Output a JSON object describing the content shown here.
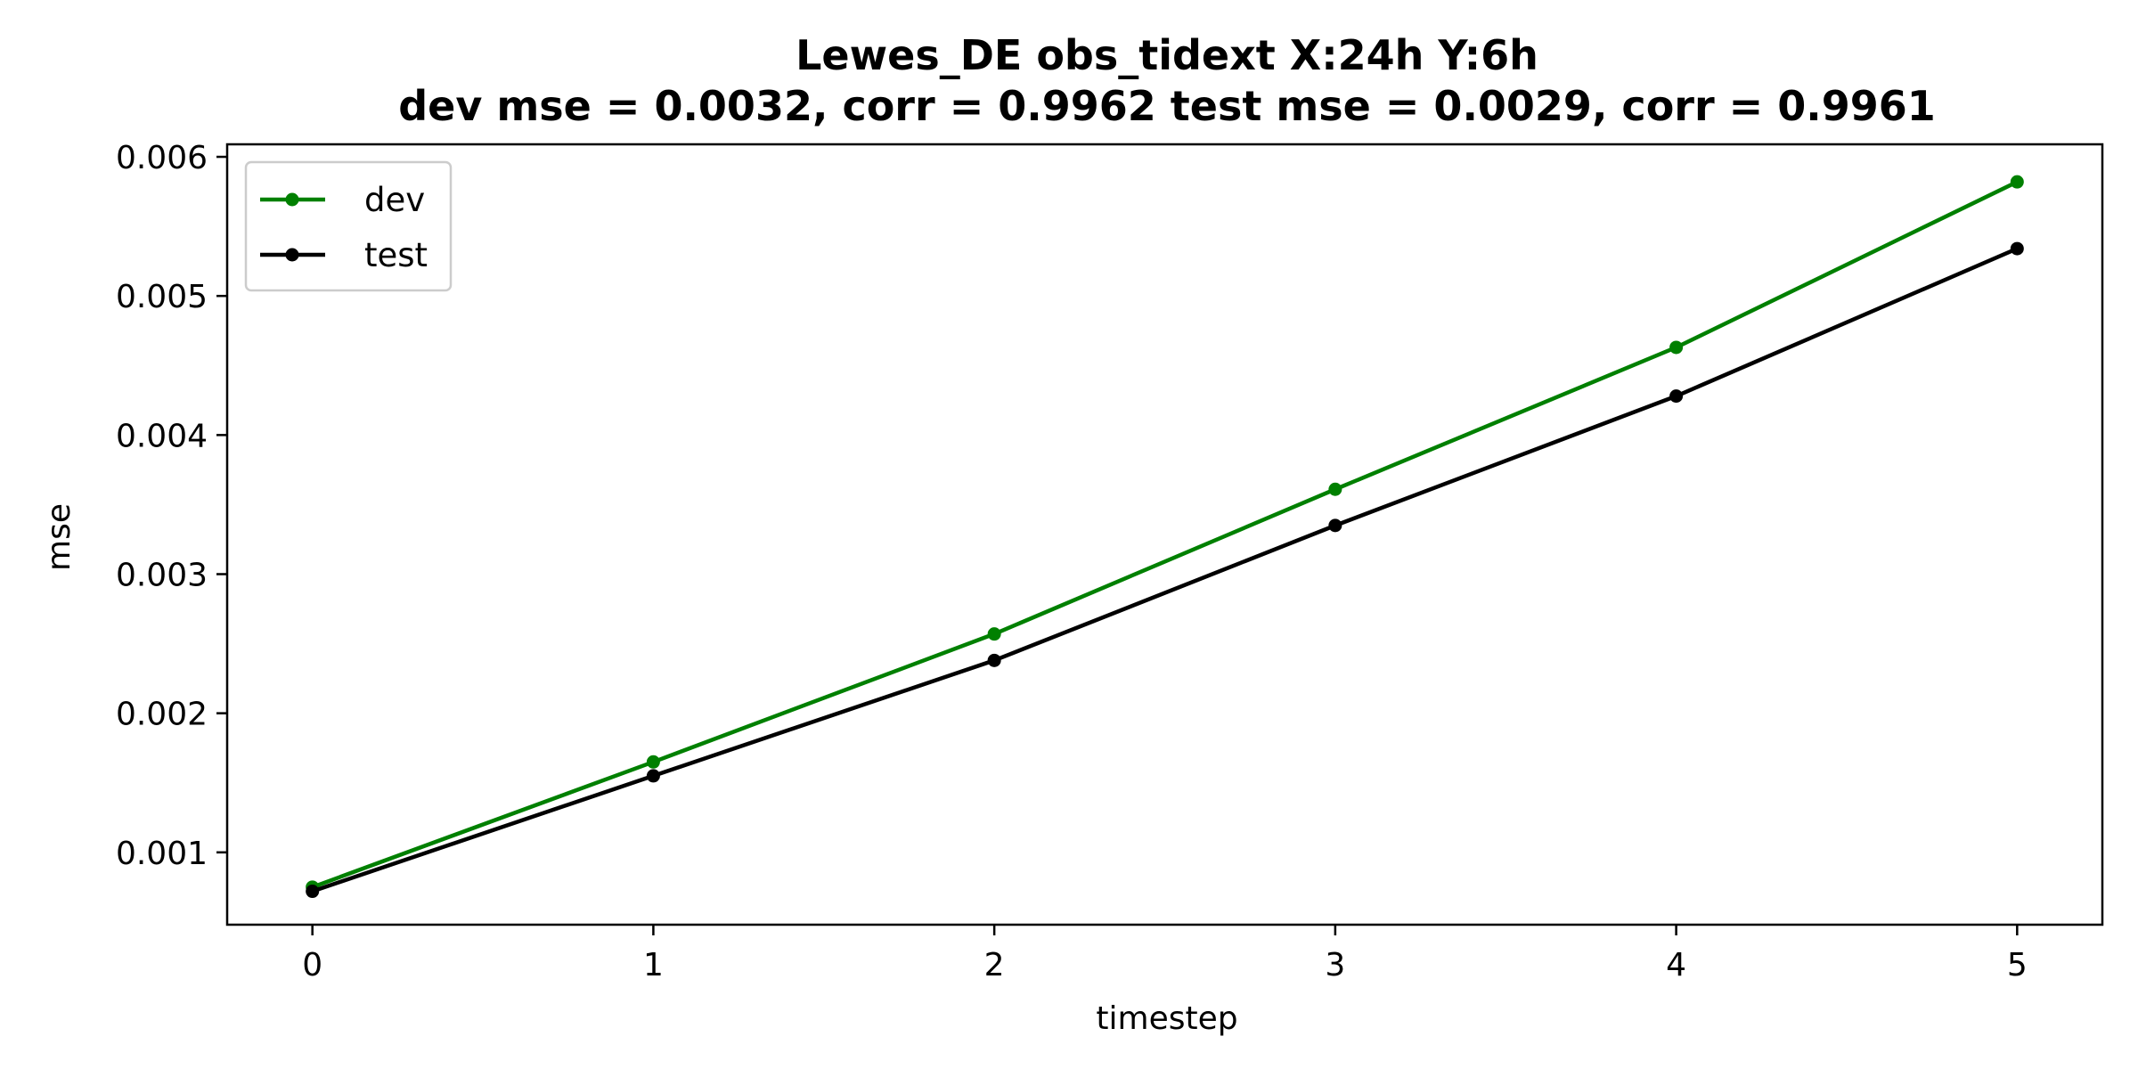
{
  "chart_data": {
    "type": "line",
    "title_line1": "Lewes_DE   obs_tidext   X:24h   Y:6h",
    "title_line2": "dev mse = 0.0032, corr = 0.9962   test mse = 0.0029, corr = 0.9961",
    "xlabel": "timestep",
    "ylabel": "mse",
    "x": [
      0,
      1,
      2,
      3,
      4,
      5
    ],
    "xlim": [
      -0.25,
      5.25
    ],
    "ylim": [
      0.00048,
      0.00609
    ],
    "xticks": [
      0,
      1,
      2,
      3,
      4,
      5
    ],
    "yticks": [
      0.001,
      0.002,
      0.003,
      0.004,
      0.005,
      0.006
    ],
    "ytick_labels": [
      "0.001",
      "0.002",
      "0.003",
      "0.004",
      "0.005",
      "0.006"
    ],
    "grid": false,
    "legend_position": "top-left",
    "series": [
      {
        "name": "dev",
        "color": "#008000",
        "values": [
          0.00075,
          0.00165,
          0.00257,
          0.00361,
          0.00463,
          0.00582
        ]
      },
      {
        "name": "test",
        "color": "#000000",
        "values": [
          0.00072,
          0.00155,
          0.00238,
          0.00335,
          0.00428,
          0.00534
        ]
      }
    ]
  }
}
